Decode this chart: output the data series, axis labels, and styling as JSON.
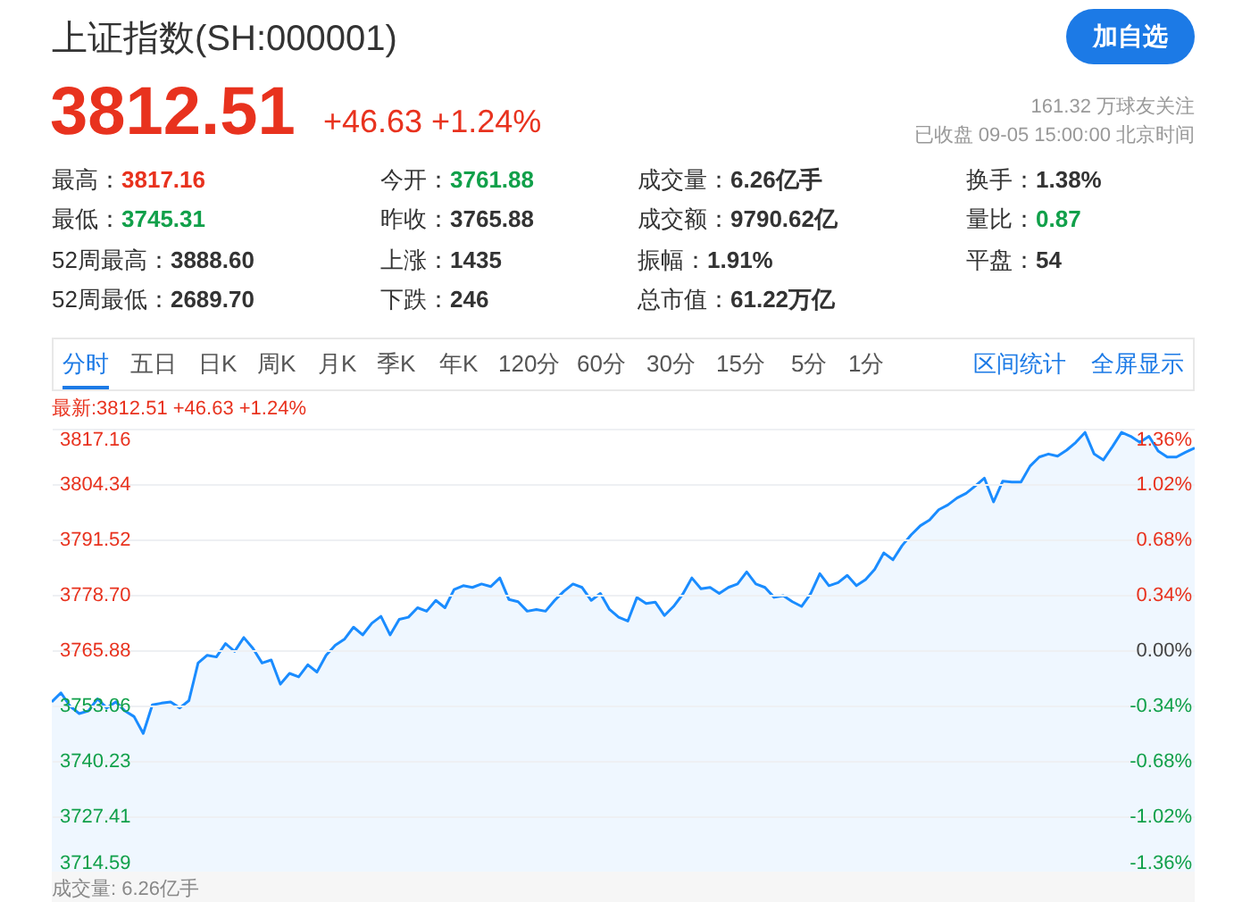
{
  "chart_data": {
    "type": "area",
    "title": "上证指数(SH:000001)",
    "annotations": [
      "3812.51",
      "+46.63 +1.24%",
      "161.32 万球友关注",
      "已收盘 09-05 15:00:00 北京时间",
      "最高：",
      "3817.16",
      "今开：",
      "3761.88",
      "成交量：",
      "6.26亿手",
      "换手：",
      "1.38%",
      "最低：",
      "3745.31",
      "昨收：",
      "3765.88",
      "成交额：",
      "9790.62亿",
      "量比：",
      "0.87",
      "52周最高：",
      "3888.60",
      "上涨：",
      "1435",
      "振幅：",
      "1.91%",
      "平盘：",
      "54",
      "52周最低：",
      "2689.70",
      "下跌：",
      "246",
      "总市值：",
      "61.22万亿",
      "加自选",
      "分时",
      "五日",
      "日K",
      "周K",
      "月K",
      "季K",
      "年K",
      "120分",
      "60分",
      "30分",
      "15分",
      "5分",
      "1分",
      "区间统计",
      "全屏显示",
      "最新:3812.51 +46.63 +1.24%",
      "成交量: 6.26亿手"
    ],
    "categories": [
      null,
      null,
      null,
      null,
      null,
      null,
      null,
      null,
      null,
      null,
      null,
      null,
      null,
      null,
      null,
      null,
      null,
      null,
      null,
      null,
      null,
      null,
      null,
      null,
      null,
      null,
      null,
      null,
      null,
      null,
      null,
      null,
      null,
      null,
      null,
      null,
      null,
      null,
      null,
      null,
      null,
      null,
      null,
      null,
      null,
      null,
      null,
      null,
      null,
      null,
      null,
      null,
      null,
      null,
      null,
      null,
      null,
      null,
      null,
      null,
      null,
      null,
      null,
      null,
      null,
      null,
      null,
      null,
      null,
      null,
      null,
      null,
      null,
      null,
      null,
      null,
      null,
      null,
      null,
      null,
      null,
      null,
      null,
      null,
      null,
      null,
      null,
      null,
      null,
      null,
      null,
      null,
      null,
      null,
      null,
      null,
      null,
      null,
      null,
      null,
      null,
      null,
      null,
      null,
      null,
      null,
      null,
      null,
      null,
      null,
      null,
      null,
      null,
      null,
      null,
      null,
      null,
      null,
      null,
      null,
      null,
      null,
      null,
      null,
      null,
      null
    ],
    "series": [
      {
        "color": "#1a8cff",
        "values": [
          3753.9,
          3756.0,
          3752.9,
          3751.2,
          3751.8,
          3754.6,
          3752.5,
          3753.9,
          3751.8,
          3750.5,
          3746.6,
          3753.2,
          3753.6,
          3753.9,
          3752.5,
          3754.2,
          3762.9,
          3764.7,
          3764.3,
          3767.4,
          3765.6,
          3768.8,
          3766.3,
          3762.9,
          3763.6,
          3758.0,
          3760.5,
          3759.7,
          3762.5,
          3760.8,
          3764.7,
          3767.0,
          3768.4,
          3771.2,
          3769.4,
          3772.1,
          3773.7,
          3769.4,
          3773.0,
          3773.5,
          3775.7,
          3774.9,
          3777.4,
          3775.7,
          3779.9,
          3780.8,
          3780.4,
          3781.2,
          3780.6,
          3782.6,
          3777.6,
          3777.1,
          3774.9,
          3775.3,
          3774.9,
          3777.4,
          3779.5,
          3781.2,
          3780.4,
          3777.4,
          3779.0,
          3775.3,
          3773.5,
          3772.6,
          3778.1,
          3776.7,
          3777.0,
          3773.9,
          3776.0,
          3778.8,
          3782.6,
          3780.1,
          3780.4,
          3779.0,
          3780.4,
          3781.2,
          3784.0,
          3781.2,
          3780.4,
          3778.1,
          3778.5,
          3777.1,
          3776.0,
          3779.0,
          3783.6,
          3780.8,
          3781.5,
          3783.2,
          3780.8,
          3782.2,
          3784.6,
          3788.4,
          3786.8,
          3790.1,
          3792.6,
          3794.7,
          3796.0,
          3798.4,
          3799.5,
          3801.1,
          3802.2,
          3803.9,
          3805.7,
          3800.2,
          3805.0,
          3804.8,
          3804.8,
          3808.5,
          3810.6,
          3811.3,
          3810.8,
          3812.2,
          3814.0,
          3816.3,
          3811.3,
          3809.9,
          3813.0,
          3816.3,
          3815.4,
          3814.0,
          3815.4,
          3812.0,
          3810.6,
          3810.6,
          3811.7,
          3812.7
        ]
      }
    ],
    "ylim": [
      3714.59,
      3817.16
    ],
    "yticks": [
      3714.59,
      3727.41,
      3740.23,
      3753.06,
      3765.88,
      {
        "value": 3778.7,
        "label": "3778.70"
      },
      3791.52,
      3804.34,
      3817.16
    ],
    "y2lim": [
      -1.36,
      1.36
    ],
    "y2ticks": [
      {
        "value": -1.36,
        "label": "-1.36%"
      },
      {
        "value": -1.02,
        "label": "-1.02%"
      },
      {
        "value": -0.68,
        "label": "-0.68%"
      },
      {
        "value": -0.34,
        "label": "-0.34%"
      },
      {
        "value": 0,
        "label": "0.00%"
      },
      {
        "value": 0.34,
        "label": "0.34%"
      },
      {
        "value": 0.68,
        "label": "0.68%"
      },
      {
        "value": 1.02,
        "label": "1.02%"
      },
      {
        "value": 1.36,
        "label": "1.36%"
      }
    ],
    "tick_labels": "y",
    "grid": "y"
  }
}
